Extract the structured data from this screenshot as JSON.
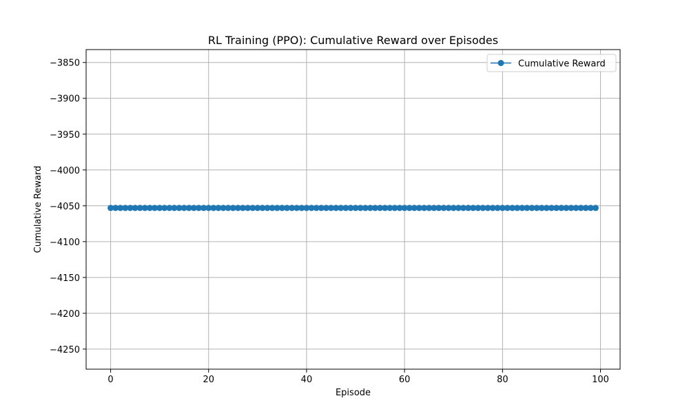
{
  "chart_data": {
    "type": "line",
    "title": "RL Training (PPO): Cumulative Reward over Episodes",
    "xlabel": "Episode",
    "ylabel": "Cumulative Reward",
    "xlim": [
      -5,
      104
    ],
    "ylim": [
      -4278,
      -3832
    ],
    "x_ticks": [
      0,
      20,
      40,
      60,
      80,
      100
    ],
    "y_ticks": [
      -3850,
      -3900,
      -3950,
      -4000,
      -4050,
      -4100,
      -4150,
      -4200,
      -4250
    ],
    "grid": true,
    "legend_position": "top-right",
    "series": [
      {
        "name": "Cumulative Reward",
        "color": "#1f77b4",
        "marker": "circle",
        "x": [
          0,
          1,
          2,
          3,
          4,
          5,
          6,
          7,
          8,
          9,
          10,
          11,
          12,
          13,
          14,
          15,
          16,
          17,
          18,
          19,
          20,
          21,
          22,
          23,
          24,
          25,
          26,
          27,
          28,
          29,
          30,
          31,
          32,
          33,
          34,
          35,
          36,
          37,
          38,
          39,
          40,
          41,
          42,
          43,
          44,
          45,
          46,
          47,
          48,
          49,
          50,
          51,
          52,
          53,
          54,
          55,
          56,
          57,
          58,
          59,
          60,
          61,
          62,
          63,
          64,
          65,
          66,
          67,
          68,
          69,
          70,
          71,
          72,
          73,
          74,
          75,
          76,
          77,
          78,
          79,
          80,
          81,
          82,
          83,
          84,
          85,
          86,
          87,
          88,
          89,
          90,
          91,
          92,
          93,
          94,
          95,
          96,
          97,
          98,
          99
        ],
        "values": [
          -4053,
          -4053,
          -4053,
          -4053,
          -4053,
          -4053,
          -4053,
          -4053,
          -4053,
          -4053,
          -4053,
          -4053,
          -4053,
          -4053,
          -4053,
          -4053,
          -4053,
          -4053,
          -4053,
          -4053,
          -4053,
          -4053,
          -4053,
          -4053,
          -4053,
          -4053,
          -4053,
          -4053,
          -4053,
          -4053,
          -4053,
          -4053,
          -4053,
          -4053,
          -4053,
          -4053,
          -4053,
          -4053,
          -4053,
          -4053,
          -4053,
          -4053,
          -4053,
          -4053,
          -4053,
          -4053,
          -4053,
          -4053,
          -4053,
          -4053,
          -4053,
          -4053,
          -4053,
          -4053,
          -4053,
          -4053,
          -4053,
          -4053,
          -4053,
          -4053,
          -4053,
          -4053,
          -4053,
          -4053,
          -4053,
          -4053,
          -4053,
          -4053,
          -4053,
          -4053,
          -4053,
          -4053,
          -4053,
          -4053,
          -4053,
          -4053,
          -4053,
          -4053,
          -4053,
          -4053,
          -4053,
          -4053,
          -4053,
          -4053,
          -4053,
          -4053,
          -4053,
          -4053,
          -4053,
          -4053,
          -4053,
          -4053,
          -4053,
          -4053,
          -4053,
          -4053,
          -4053,
          -4053,
          -4053,
          -4053
        ]
      }
    ]
  }
}
